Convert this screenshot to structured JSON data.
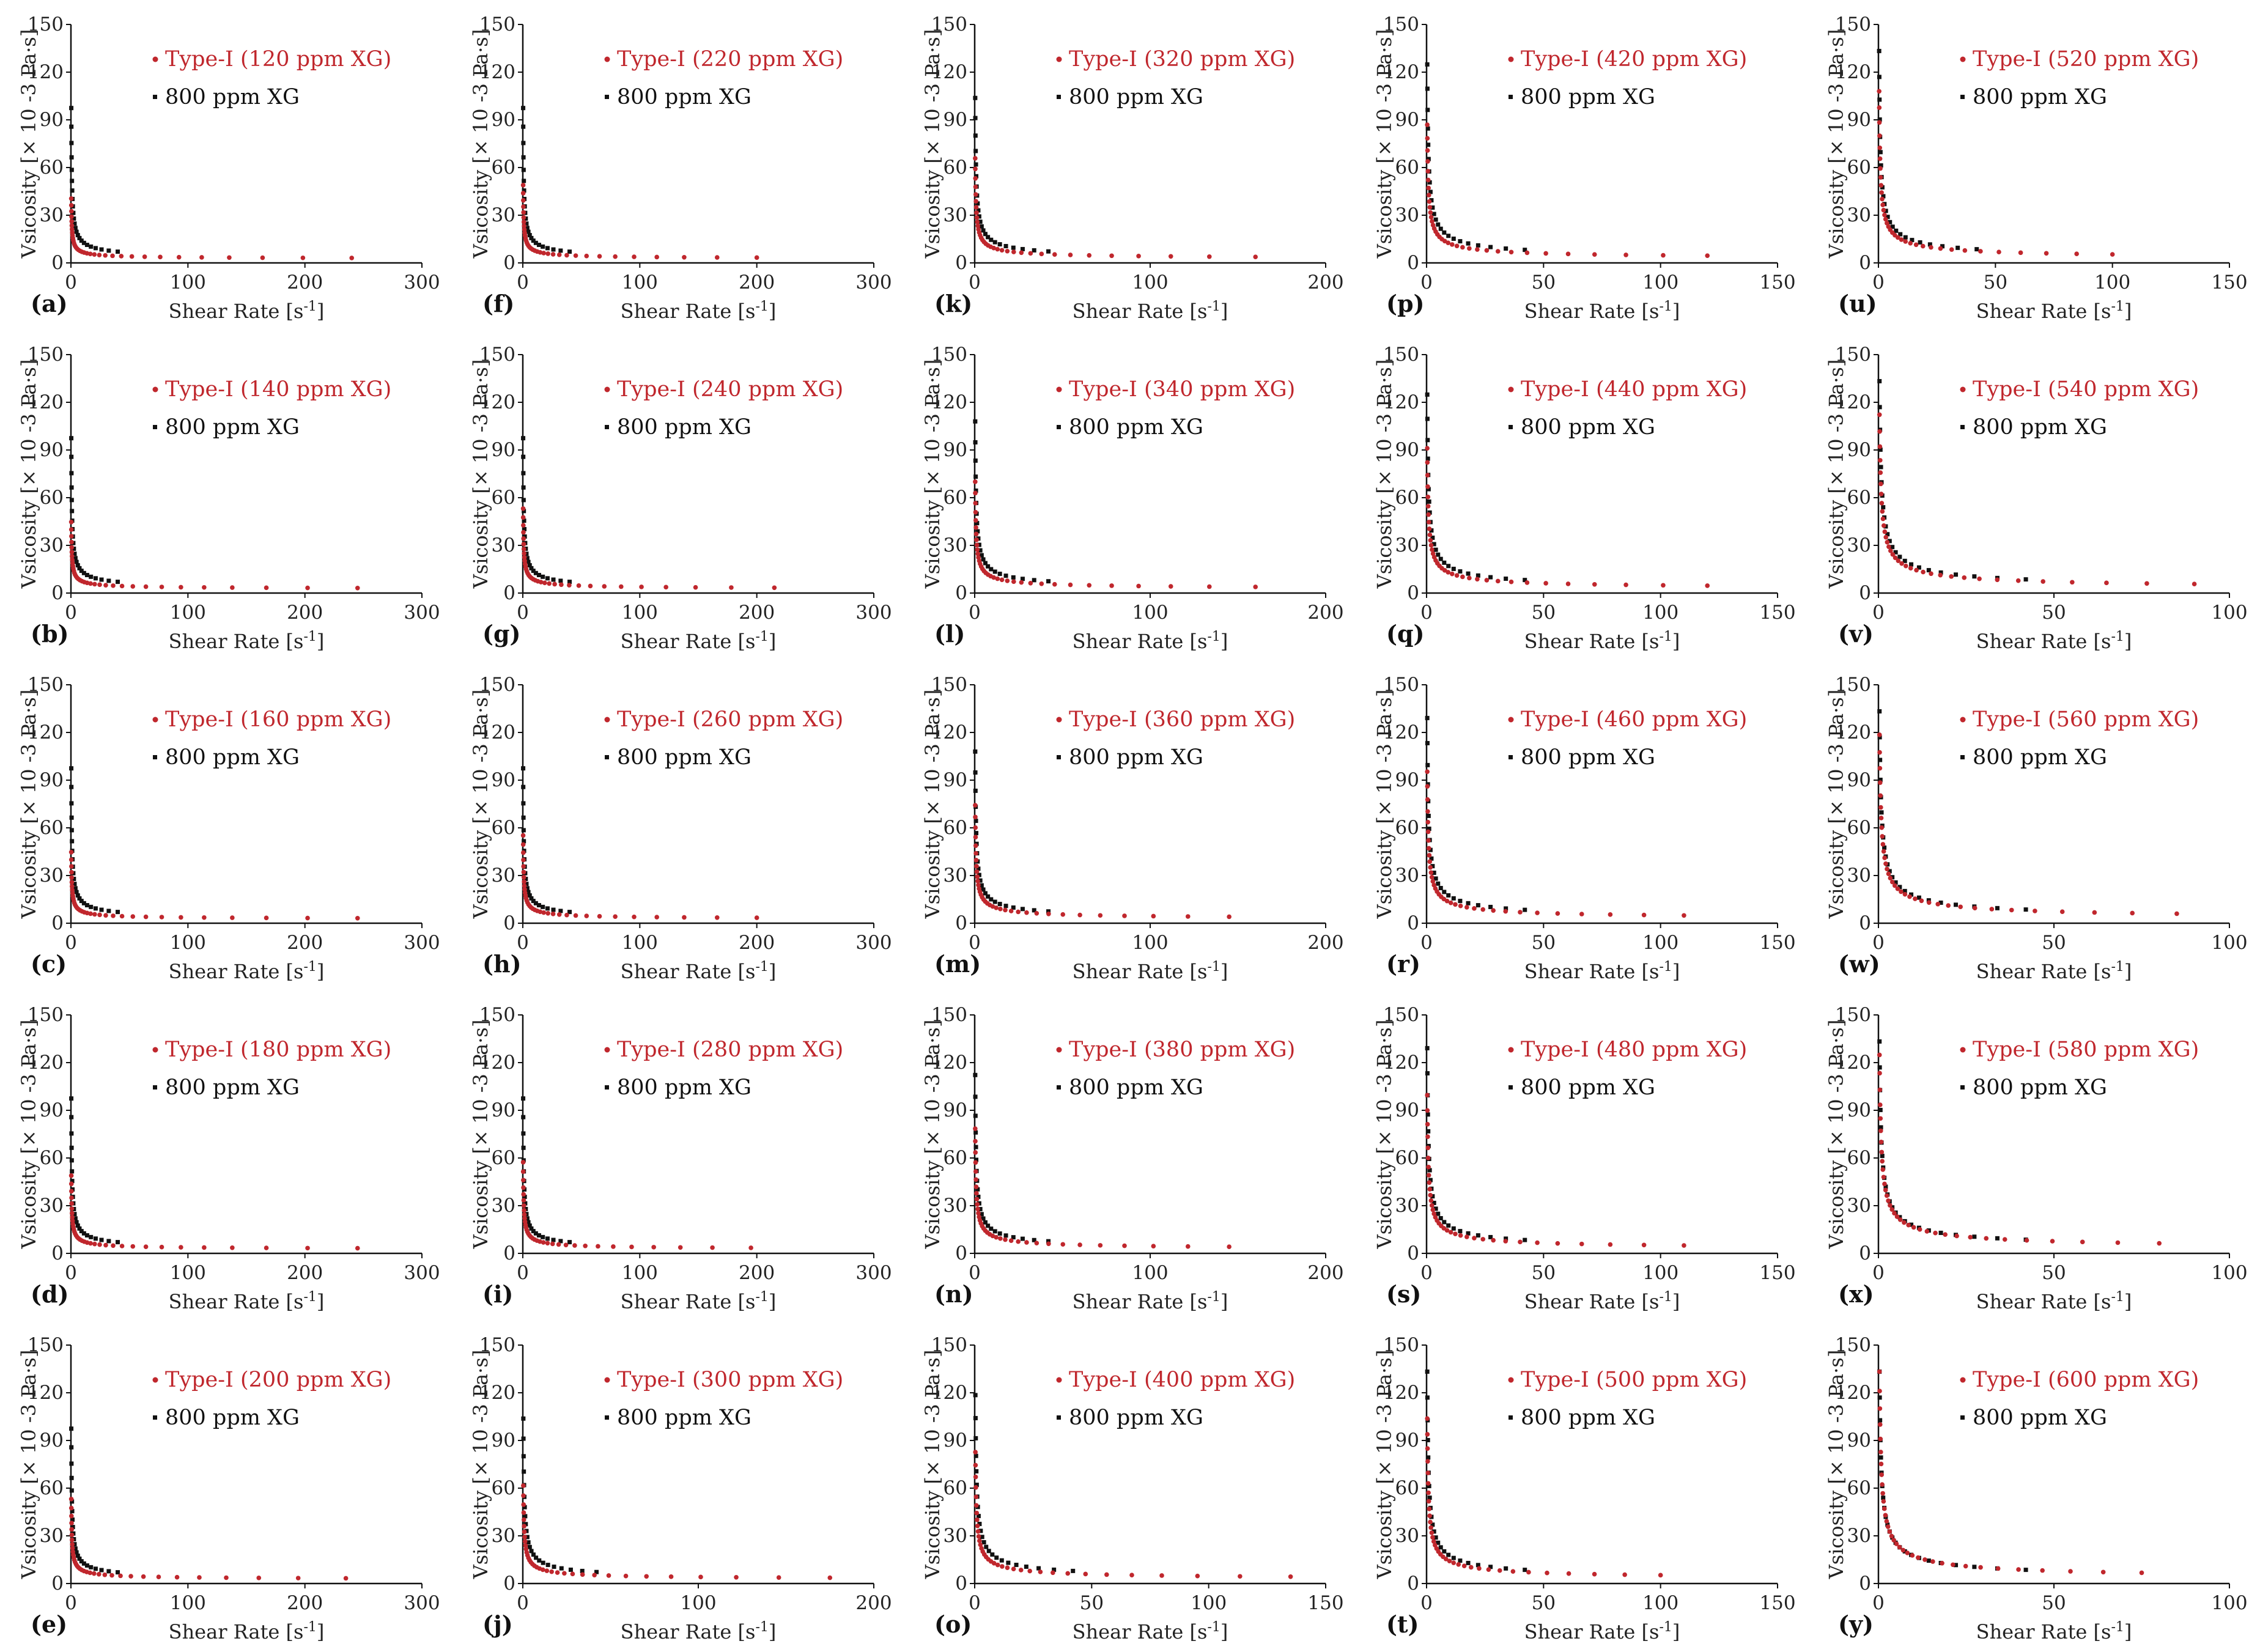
{
  "figure": {
    "y_label": "Vsicosity [× 10 -3 Pa·s]",
    "x_label_text": "Shear Rate [s",
    "x_label_sup": "-1",
    "x_label_close": "]",
    "reference_series": "800 ppm XG",
    "colors": {
      "type_i": "#c0272d",
      "reference": "#111111",
      "axis": "#111111"
    }
  },
  "chart_data": [
    {
      "type": "scatter",
      "label": "(a)",
      "series": [
        {
          "name": "Type-I (120 ppm XG)",
          "color": "#c0272d"
        },
        {
          "name": "800 ppm XG",
          "color": "#111111"
        }
      ],
      "xlim": [
        0,
        300
      ],
      "xticks": [
        0,
        100,
        200,
        300
      ],
      "ylim": [
        0,
        150
      ],
      "yticks": [
        0,
        30,
        60,
        90,
        120,
        150
      ],
      "type_i_K": 18,
      "type_i_xmax": 240,
      "ref_K": 45,
      "ref_xmax": 40
    },
    {
      "type": "scatter",
      "label": "(b)",
      "series": [
        {
          "name": "Type-I (140 ppm XG)",
          "color": "#c0272d"
        },
        {
          "name": "800 ppm XG",
          "color": "#111111"
        }
      ],
      "xlim": [
        0,
        300
      ],
      "xticks": [
        0,
        100,
        200,
        300
      ],
      "ylim": [
        0,
        150
      ],
      "yticks": [
        0,
        30,
        60,
        90,
        120,
        150
      ],
      "type_i_K": 20,
      "type_i_xmax": 245,
      "ref_K": 45,
      "ref_xmax": 40
    },
    {
      "type": "scatter",
      "label": "(c)",
      "series": [
        {
          "name": "Type-I (160 ppm XG)",
          "color": "#c0272d"
        },
        {
          "name": "800 ppm XG",
          "color": "#111111"
        }
      ],
      "xlim": [
        0,
        300
      ],
      "xticks": [
        0,
        100,
        200,
        300
      ],
      "ylim": [
        0,
        150
      ],
      "yticks": [
        0,
        30,
        60,
        90,
        120,
        150
      ],
      "type_i_K": 20,
      "type_i_xmax": 245,
      "ref_K": 45,
      "ref_xmax": 40
    },
    {
      "type": "scatter",
      "label": "(d)",
      "series": [
        {
          "name": "Type-I (180 ppm XG)",
          "color": "#c0272d"
        },
        {
          "name": "800 ppm XG",
          "color": "#111111"
        }
      ],
      "xlim": [
        0,
        300
      ],
      "xticks": [
        0,
        100,
        200,
        300
      ],
      "ylim": [
        0,
        150
      ],
      "yticks": [
        0,
        30,
        60,
        90,
        120,
        150
      ],
      "type_i_K": 22,
      "type_i_xmax": 245,
      "ref_K": 45,
      "ref_xmax": 40
    },
    {
      "type": "scatter",
      "label": "(e)",
      "series": [
        {
          "name": "Type-I (200 ppm XG)",
          "color": "#c0272d"
        },
        {
          "name": "800 ppm XG",
          "color": "#111111"
        }
      ],
      "xlim": [
        0,
        300
      ],
      "xticks": [
        0,
        100,
        200,
        300
      ],
      "ylim": [
        0,
        150
      ],
      "yticks": [
        0,
        30,
        60,
        90,
        120,
        150
      ],
      "type_i_K": 24,
      "type_i_xmax": 235,
      "ref_K": 45,
      "ref_xmax": 40
    },
    {
      "type": "scatter",
      "label": "(f)",
      "series": [
        {
          "name": "Type-I (220 ppm XG)",
          "color": "#c0272d"
        },
        {
          "name": "800 ppm XG",
          "color": "#111111"
        }
      ],
      "xlim": [
        0,
        300
      ],
      "xticks": [
        0,
        100,
        200,
        300
      ],
      "ylim": [
        0,
        150
      ],
      "yticks": [
        0,
        30,
        60,
        90,
        120,
        150
      ],
      "type_i_K": 22,
      "type_i_xmax": 200,
      "ref_K": 45,
      "ref_xmax": 40
    },
    {
      "type": "scatter",
      "label": "(g)",
      "series": [
        {
          "name": "Type-I (240 ppm XG)",
          "color": "#c0272d"
        },
        {
          "name": "800 ppm XG",
          "color": "#111111"
        }
      ],
      "xlim": [
        0,
        300
      ],
      "xticks": [
        0,
        100,
        200,
        300
      ],
      "ylim": [
        0,
        150
      ],
      "yticks": [
        0,
        30,
        60,
        90,
        120,
        150
      ],
      "type_i_K": 24,
      "type_i_xmax": 215,
      "ref_K": 45,
      "ref_xmax": 40
    },
    {
      "type": "scatter",
      "label": "(h)",
      "series": [
        {
          "name": "Type-I (260 ppm XG)",
          "color": "#c0272d"
        },
        {
          "name": "800 ppm XG",
          "color": "#111111"
        }
      ],
      "xlim": [
        0,
        300
      ],
      "xticks": [
        0,
        100,
        200,
        300
      ],
      "ylim": [
        0,
        150
      ],
      "yticks": [
        0,
        30,
        60,
        90,
        120,
        150
      ],
      "type_i_K": 25,
      "type_i_xmax": 200,
      "ref_K": 45,
      "ref_xmax": 40
    },
    {
      "type": "scatter",
      "label": "(i)",
      "series": [
        {
          "name": "Type-I (280 ppm XG)",
          "color": "#c0272d"
        },
        {
          "name": "800 ppm XG",
          "color": "#111111"
        }
      ],
      "xlim": [
        0,
        300
      ],
      "xticks": [
        0,
        100,
        200,
        300
      ],
      "ylim": [
        0,
        150
      ],
      "yticks": [
        0,
        30,
        60,
        90,
        120,
        150
      ],
      "type_i_K": 26,
      "type_i_xmax": 195,
      "ref_K": 45,
      "ref_xmax": 40
    },
    {
      "type": "scatter",
      "label": "(j)",
      "series": [
        {
          "name": "Type-I (300 ppm XG)",
          "color": "#c0272d"
        },
        {
          "name": "800 ppm XG",
          "color": "#111111"
        }
      ],
      "xlim": [
        0,
        200
      ],
      "xticks": [
        0,
        100,
        200
      ],
      "ylim": [
        0,
        150
      ],
      "yticks": [
        0,
        30,
        60,
        90,
        120,
        150
      ],
      "type_i_K": 28,
      "type_i_xmax": 175,
      "ref_K": 48,
      "ref_xmax": 42
    },
    {
      "type": "scatter",
      "label": "(k)",
      "series": [
        {
          "name": "Type-I (320 ppm XG)",
          "color": "#c0272d"
        },
        {
          "name": "800 ppm XG",
          "color": "#111111"
        }
      ],
      "xlim": [
        0,
        200
      ],
      "xticks": [
        0,
        100,
        200
      ],
      "ylim": [
        0,
        150
      ],
      "yticks": [
        0,
        30,
        60,
        90,
        120,
        150
      ],
      "type_i_K": 30,
      "type_i_xmax": 160,
      "ref_K": 48,
      "ref_xmax": 42
    },
    {
      "type": "scatter",
      "label": "(l)",
      "series": [
        {
          "name": "Type-I (340 ppm XG)",
          "color": "#c0272d"
        },
        {
          "name": "800 ppm XG",
          "color": "#111111"
        }
      ],
      "xlim": [
        0,
        200
      ],
      "xticks": [
        0,
        100,
        200
      ],
      "ylim": [
        0,
        150
      ],
      "yticks": [
        0,
        30,
        60,
        90,
        120,
        150
      ],
      "type_i_K": 32,
      "type_i_xmax": 160,
      "ref_K": 50,
      "ref_xmax": 42
    },
    {
      "type": "scatter",
      "label": "(m)",
      "series": [
        {
          "name": "Type-I (360 ppm XG)",
          "color": "#c0272d"
        },
        {
          "name": "800 ppm XG",
          "color": "#111111"
        }
      ],
      "xlim": [
        0,
        200
      ],
      "xticks": [
        0,
        100,
        200
      ],
      "ylim": [
        0,
        150
      ],
      "yticks": [
        0,
        30,
        60,
        90,
        120,
        150
      ],
      "type_i_K": 34,
      "type_i_xmax": 145,
      "ref_K": 50,
      "ref_xmax": 42
    },
    {
      "type": "scatter",
      "label": "(n)",
      "series": [
        {
          "name": "Type-I (380 ppm XG)",
          "color": "#c0272d"
        },
        {
          "name": "800 ppm XG",
          "color": "#111111"
        }
      ],
      "xlim": [
        0,
        200
      ],
      "xticks": [
        0,
        100,
        200
      ],
      "ylim": [
        0,
        150
      ],
      "yticks": [
        0,
        30,
        60,
        90,
        120,
        150
      ],
      "type_i_K": 36,
      "type_i_xmax": 145,
      "ref_K": 52,
      "ref_xmax": 42
    },
    {
      "type": "scatter",
      "label": "(o)",
      "series": [
        {
          "name": "Type-I (400 ppm XG)",
          "color": "#c0272d"
        },
        {
          "name": "800 ppm XG",
          "color": "#111111"
        }
      ],
      "xlim": [
        0,
        150
      ],
      "xticks": [
        0,
        50,
        100,
        150
      ],
      "ylim": [
        0,
        150
      ],
      "yticks": [
        0,
        30,
        60,
        90,
        120,
        150
      ],
      "type_i_K": 38,
      "type_i_xmax": 135,
      "ref_K": 55,
      "ref_xmax": 42
    },
    {
      "type": "scatter",
      "label": "(p)",
      "series": [
        {
          "name": "Type-I (420 ppm XG)",
          "color": "#c0272d"
        },
        {
          "name": "800 ppm XG",
          "color": "#111111"
        }
      ],
      "xlim": [
        0,
        150
      ],
      "xticks": [
        0,
        50,
        100,
        150
      ],
      "ylim": [
        0,
        150
      ],
      "yticks": [
        0,
        30,
        60,
        90,
        120,
        150
      ],
      "type_i_K": 40,
      "type_i_xmax": 120,
      "ref_K": 58,
      "ref_xmax": 42
    },
    {
      "type": "scatter",
      "label": "(q)",
      "series": [
        {
          "name": "Type-I (440 ppm XG)",
          "color": "#c0272d"
        },
        {
          "name": "800 ppm XG",
          "color": "#111111"
        }
      ],
      "xlim": [
        0,
        150
      ],
      "xticks": [
        0,
        50,
        100,
        150
      ],
      "ylim": [
        0,
        150
      ],
      "yticks": [
        0,
        30,
        60,
        90,
        120,
        150
      ],
      "type_i_K": 42,
      "type_i_xmax": 120,
      "ref_K": 58,
      "ref_xmax": 42
    },
    {
      "type": "scatter",
      "label": "(r)",
      "series": [
        {
          "name": "Type-I (460 ppm XG)",
          "color": "#c0272d"
        },
        {
          "name": "800 ppm XG",
          "color": "#111111"
        }
      ],
      "xlim": [
        0,
        150
      ],
      "xticks": [
        0,
        50,
        100,
        150
      ],
      "ylim": [
        0,
        150
      ],
      "yticks": [
        0,
        30,
        60,
        90,
        120,
        150
      ],
      "type_i_K": 44,
      "type_i_xmax": 110,
      "ref_K": 60,
      "ref_xmax": 42
    },
    {
      "type": "scatter",
      "label": "(s)",
      "series": [
        {
          "name": "Type-I (480 ppm XG)",
          "color": "#c0272d"
        },
        {
          "name": "800 ppm XG",
          "color": "#111111"
        }
      ],
      "xlim": [
        0,
        150
      ],
      "xticks": [
        0,
        50,
        100,
        150
      ],
      "ylim": [
        0,
        150
      ],
      "yticks": [
        0,
        30,
        60,
        90,
        120,
        150
      ],
      "type_i_K": 46,
      "type_i_xmax": 110,
      "ref_K": 60,
      "ref_xmax": 42
    },
    {
      "type": "scatter",
      "label": "(t)",
      "series": [
        {
          "name": "Type-I (500 ppm XG)",
          "color": "#c0272d"
        },
        {
          "name": "800 ppm XG",
          "color": "#111111"
        }
      ],
      "xlim": [
        0,
        150
      ],
      "xticks": [
        0,
        50,
        100,
        150
      ],
      "ylim": [
        0,
        150
      ],
      "yticks": [
        0,
        30,
        60,
        90,
        120,
        150
      ],
      "type_i_K": 48,
      "type_i_xmax": 100,
      "ref_K": 62,
      "ref_xmax": 42
    },
    {
      "type": "scatter",
      "label": "(u)",
      "series": [
        {
          "name": "Type-I (520 ppm XG)",
          "color": "#c0272d"
        },
        {
          "name": "800 ppm XG",
          "color": "#111111"
        }
      ],
      "xlim": [
        0,
        150
      ],
      "xticks": [
        0,
        50,
        100,
        150
      ],
      "ylim": [
        0,
        150
      ],
      "yticks": [
        0,
        30,
        60,
        90,
        120,
        150
      ],
      "type_i_K": 50,
      "type_i_xmax": 100,
      "ref_K": 62,
      "ref_xmax": 42
    },
    {
      "type": "scatter",
      "label": "(v)",
      "series": [
        {
          "name": "Type-I (540 ppm XG)",
          "color": "#c0272d"
        },
        {
          "name": "800 ppm XG",
          "color": "#111111"
        }
      ],
      "xlim": [
        0,
        100
      ],
      "xticks": [
        0,
        50,
        100
      ],
      "ylim": [
        0,
        150
      ],
      "yticks": [
        0,
        30,
        60,
        90,
        120,
        150
      ],
      "type_i_K": 52,
      "type_i_xmax": 90,
      "ref_K": 62,
      "ref_xmax": 42
    },
    {
      "type": "scatter",
      "label": "(w)",
      "series": [
        {
          "name": "Type-I (560 ppm XG)",
          "color": "#c0272d"
        },
        {
          "name": "800 ppm XG",
          "color": "#111111"
        }
      ],
      "xlim": [
        0,
        100
      ],
      "xticks": [
        0,
        50,
        100
      ],
      "ylim": [
        0,
        150
      ],
      "yticks": [
        0,
        30,
        60,
        90,
        120,
        150
      ],
      "type_i_K": 55,
      "type_i_xmax": 85,
      "ref_K": 62,
      "ref_xmax": 42
    },
    {
      "type": "scatter",
      "label": "(x)",
      "series": [
        {
          "name": "Type-I (580 ppm XG)",
          "color": "#c0272d"
        },
        {
          "name": "800 ppm XG",
          "color": "#111111"
        }
      ],
      "xlim": [
        0,
        100
      ],
      "xticks": [
        0,
        50,
        100
      ],
      "ylim": [
        0,
        150
      ],
      "yticks": [
        0,
        30,
        60,
        90,
        120,
        150
      ],
      "type_i_K": 58,
      "type_i_xmax": 80,
      "ref_K": 62,
      "ref_xmax": 42
    },
    {
      "type": "scatter",
      "label": "(y)",
      "series": [
        {
          "name": "Type-I (600 ppm XG)",
          "color": "#c0272d"
        },
        {
          "name": "800 ppm XG",
          "color": "#111111"
        }
      ],
      "xlim": [
        0,
        100
      ],
      "xticks": [
        0,
        50,
        100
      ],
      "ylim": [
        0,
        150
      ],
      "yticks": [
        0,
        30,
        60,
        90,
        120,
        150
      ],
      "type_i_K": 62,
      "type_i_xmax": 75,
      "ref_K": 62,
      "ref_xmax": 42
    }
  ]
}
